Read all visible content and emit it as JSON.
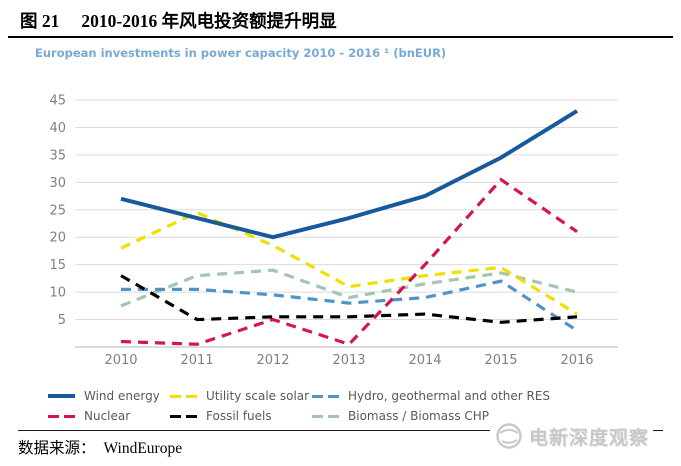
{
  "header": {
    "figure_label": "图 21",
    "title": "2010-2016 年风电投资额提升明显"
  },
  "chart": {
    "subtitle": "European investments in power capacity 2010 - 2016 ¹ (bnEUR)"
  },
  "chart_data": {
    "type": "line",
    "title": "European investments in power capacity 2010 - 2016 ¹ (bnEUR)",
    "x": [
      "2010",
      "2011",
      "2012",
      "2013",
      "2014",
      "2015",
      "2016"
    ],
    "series": [
      {
        "name": "Wind energy",
        "color": "#165a9c",
        "style": "solid",
        "values": [
          27,
          23.5,
          20,
          23.5,
          27.5,
          34.5,
          43
        ]
      },
      {
        "name": "Nuclear",
        "color": "#d6154c",
        "style": "dashed",
        "values": [
          1,
          0.5,
          5,
          0.5,
          15,
          30.5,
          21
        ]
      },
      {
        "name": "Utility scale solar",
        "color": "#f0df00",
        "style": "dashed",
        "values": [
          18,
          24.5,
          18.5,
          11,
          13,
          14.5,
          6
        ]
      },
      {
        "name": "Fossil fuels",
        "color": "#000000",
        "style": "dashed",
        "values": [
          13,
          5,
          5.5,
          5.5,
          6,
          4.5,
          5.5
        ]
      },
      {
        "name": "Hydro, geothermal and other RES",
        "color": "#4f94c9",
        "style": "dashed",
        "values": [
          10.5,
          10.5,
          9.5,
          8,
          9,
          12,
          3
        ]
      },
      {
        "name": "Biomass / Biomass CHP",
        "color": "#a3c6ae",
        "style": "dashed",
        "values": [
          7.5,
          13,
          14,
          9,
          11.5,
          13.5,
          10
        ]
      }
    ],
    "ylim": [
      0,
      45
    ],
    "yticks": [
      5,
      10,
      15,
      20,
      25,
      30,
      35,
      40,
      45
    ],
    "grid": true,
    "legend_position": "bottom",
    "axis_label_color": "#818181",
    "gridline_color": "#dcdcdc",
    "baseline_color": "#c4c4c4"
  },
  "footer": {
    "source_label": "数据来源：",
    "source_value": "WindEurope"
  },
  "watermark": {
    "text": "电新深度观察"
  }
}
